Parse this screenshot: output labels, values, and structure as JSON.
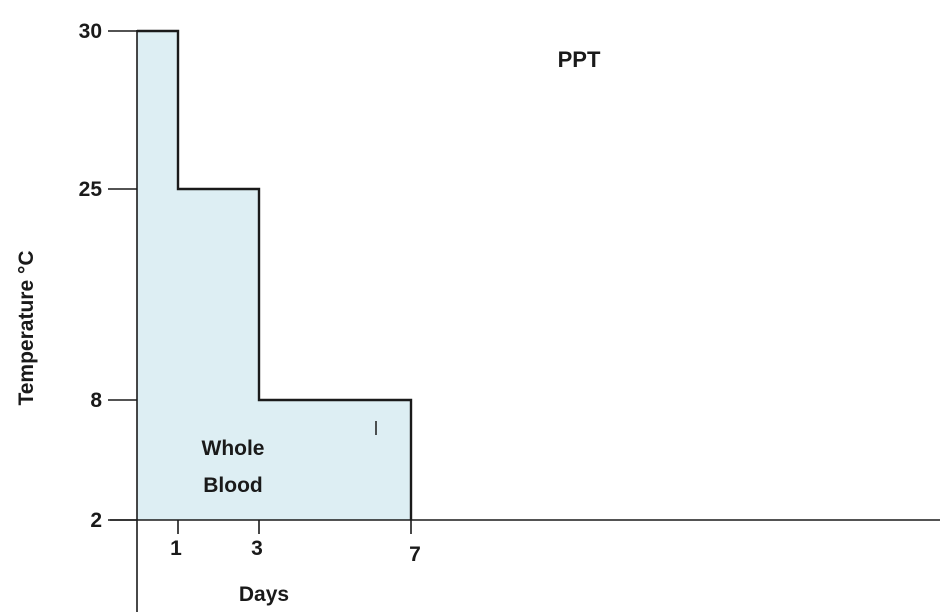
{
  "chart_data": {
    "type": "area",
    "title": "PPT",
    "xlabel": "Days",
    "ylabel": "Temperature °C",
    "x_ticks": [
      1,
      3,
      7
    ],
    "y_ticks": [
      2,
      8,
      25,
      30
    ],
    "series": [
      {
        "step_points": [
          {
            "x": 0,
            "y": 30
          },
          {
            "x": 1,
            "y": 30
          },
          {
            "x": 1,
            "y": 25
          },
          {
            "x": 3,
            "y": 25
          },
          {
            "x": 3,
            "y": 8
          },
          {
            "x": 7,
            "y": 8
          },
          {
            "x": 7,
            "y": 2
          }
        ]
      }
    ],
    "annotations": [
      "Whole",
      "Blood"
    ],
    "fill_color": "#ddeef3",
    "line_color": "#1a1a1a",
    "grid": false,
    "legend": "none"
  }
}
